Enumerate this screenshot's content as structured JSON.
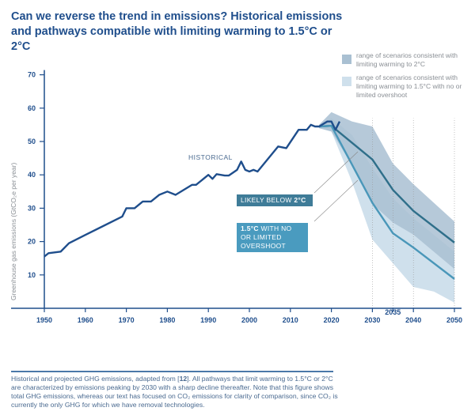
{
  "title": "Can we reverse the trend in emissions? Historical emissions and pathways compatible with limiting warming to 1.5°C or 2°C",
  "legend": [
    {
      "label": "range of scenarios consistent with limiting warming to 2°C",
      "color": "#a9c0d2"
    },
    {
      "label": "range of scenarios consistent with limiting warming to 1.5°C with no or limited overshoot",
      "color": "#cfe0ec"
    }
  ],
  "caption": {
    "pre": "Historical and projected GHG emissions, adapted from [",
    "ref": "12",
    "post": "]. All pathways that limit warming to 1.5°C or 2°C are characterized by emissions peaking by 2030 with a sharp decline thereafter. Note that this figure shows total GHG emissions, whereas our text has focused on CO₂ emissions for clarity of comparison, since CO₂ is currently the only GHG for which we have removal technologies."
  },
  "annotations": {
    "historical": "HISTORICAL",
    "two_deg_pre": "LIKELY BELOW ",
    "two_deg_bold": "2°C",
    "one_five_bold": "1.5°C",
    "one_five_post": " WITH NO OR LIMITED OVERSHOOT"
  },
  "chart_data": {
    "type": "line",
    "title": "Can we reverse the trend in emissions? Historical emissions and pathways compatible with limiting warming to 1.5°C or 2°C",
    "xlabel": "",
    "ylabel": "Greenhouse gas emissions (GtCO₂e per year)",
    "xlim": [
      1950,
      2050
    ],
    "ylim": [
      0,
      70
    ],
    "xticks": [
      1950,
      1960,
      1970,
      1980,
      1990,
      2000,
      2010,
      2020,
      2030,
      2035,
      2040,
      2050
    ],
    "yticks": [
      10,
      20,
      30,
      40,
      50,
      60,
      70
    ],
    "grid": false,
    "legend_position": "top-right",
    "colors": {
      "historical": "#1f4e8c",
      "two_deg": "#2f6f8a",
      "one_five": "#4a97b9",
      "band_two": "#a9c0d2",
      "band_one_five": "#cfe0ec"
    },
    "series": [
      {
        "name": "Historical",
        "x": [
          1950,
          1951,
          1954,
          1956,
          1960,
          1969,
          1970,
          1972,
          1974,
          1976,
          1978,
          1980,
          1982,
          1986,
          1987,
          1990,
          1991,
          1992,
          1994,
          1995,
          1997,
          1998,
          1999,
          2000,
          2001,
          2002,
          2007,
          2009,
          2012,
          2014,
          2015,
          2016,
          2017,
          2019,
          2020,
          2021,
          2022
        ],
        "y": [
          15.5,
          16.5,
          17,
          19.5,
          22,
          27.5,
          30,
          30,
          32,
          32,
          34,
          35,
          34,
          37,
          37,
          40,
          38.8,
          40.2,
          39.8,
          39.8,
          41.5,
          44,
          41.5,
          41,
          41.5,
          41,
          48.5,
          48,
          53.5,
          53.5,
          55,
          54.5,
          54.5,
          56,
          56,
          53.5,
          56
        ]
      },
      {
        "name": "Likely below 2°C",
        "x": [
          2017,
          2020,
          2030,
          2035,
          2040,
          2050
        ],
        "y": [
          54.5,
          54.7,
          44.6,
          35.5,
          29.2,
          19.7
        ]
      },
      {
        "name": "1.5°C with no or limited overshoot",
        "x": [
          2017,
          2020,
          2030,
          2035,
          2040,
          2050
        ],
        "y": [
          54.5,
          54.7,
          31.6,
          22.5,
          18.2,
          8.8
        ]
      }
    ],
    "bands": [
      {
        "name": "range 2°C",
        "x": [
          2017,
          2020,
          2025,
          2030,
          2035,
          2040,
          2050
        ],
        "upper": [
          55,
          58.8,
          56,
          54.5,
          43.4,
          37.2,
          26
        ],
        "lower": [
          54,
          53,
          43,
          31.3,
          25.7,
          22.1,
          11.8
        ]
      },
      {
        "name": "range 1.5°C",
        "x": [
          2017,
          2020,
          2025,
          2030,
          2035,
          2040,
          2045,
          2050
        ],
        "upper": [
          55,
          57,
          52,
          42,
          33,
          27,
          22,
          17
        ],
        "lower": [
          54,
          53,
          38,
          20.6,
          13.5,
          6.4,
          5,
          1.7
        ]
      }
    ]
  }
}
